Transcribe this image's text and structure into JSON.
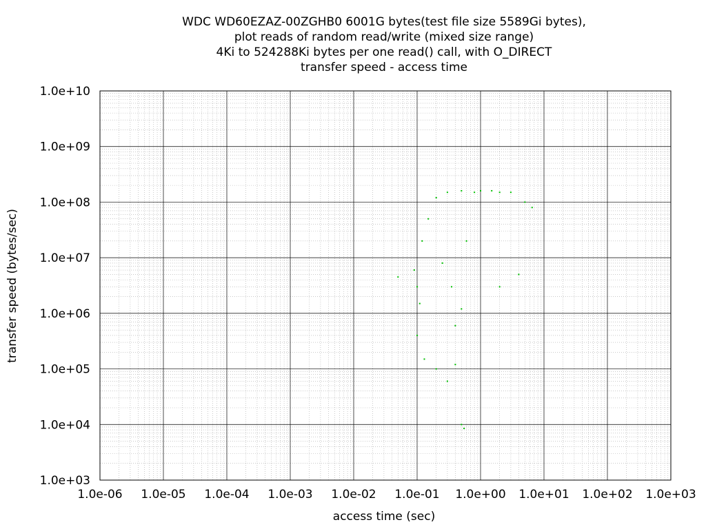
{
  "chart_data": {
    "type": "scatter",
    "title_lines": [
      "WDC WD60EZAZ-00ZGHB0 6001G bytes(test file size 5589Gi bytes),",
      "plot reads of random read/write (mixed size range)",
      "4Ki to 524288Ki bytes per one read() call, with O_DIRECT",
      "transfer speed - access time"
    ],
    "xlabel": "access time (sec)",
    "ylabel": "transfer speed (bytes/sec)",
    "xscale": "log",
    "yscale": "log",
    "xlim": [
      1e-06,
      1000
    ],
    "ylim": [
      1000,
      10000000000.0
    ],
    "x_tick_labels": [
      "1.0e-06",
      "1.0e-05",
      "1.0e-04",
      "1.0e-03",
      "1.0e-02",
      "1.0e-01",
      "1.0e+00",
      "1.0e+01",
      "1.0e+02",
      "1.0e+03"
    ],
    "y_tick_labels": [
      "1.0e+03",
      "1.0e+04",
      "1.0e+05",
      "1.0e+06",
      "1.0e+07",
      "1.0e+08",
      "1.0e+09",
      "1.0e+10"
    ],
    "grid": true,
    "series_color": "#00c000",
    "series": [
      {
        "points": [
          [
            0.05,
            4500000.0
          ],
          [
            0.09,
            6000000.0
          ],
          [
            0.1,
            3000000.0
          ],
          [
            0.11,
            1500000.0
          ],
          [
            0.1,
            400000.0
          ],
          [
            0.12,
            20000000.0
          ],
          [
            0.15,
            50000000.0
          ],
          [
            0.2,
            120000000.0
          ],
          [
            0.3,
            150000000.0
          ],
          [
            0.25,
            8000000.0
          ],
          [
            0.4,
            600000.0
          ],
          [
            0.4,
            120000.0
          ],
          [
            0.35,
            3000000.0
          ],
          [
            0.5,
            160000000.0
          ],
          [
            0.6,
            20000000.0
          ],
          [
            0.8,
            150000000.0
          ],
          [
            1.0,
            160000000.0
          ],
          [
            1.5,
            160000000.0
          ],
          [
            2.0,
            150000000.0
          ],
          [
            3.0,
            150000000.0
          ],
          [
            5.0,
            100000000.0
          ],
          [
            6.5,
            80000000.0
          ],
          [
            4.0,
            5000000.0
          ],
          [
            2.0,
            3000000.0
          ],
          [
            0.5,
            1200000.0
          ],
          [
            0.13,
            150000.0
          ],
          [
            0.3,
            60000.0
          ],
          [
            0.5,
            10000.0
          ],
          [
            0.55,
            8500.0
          ],
          [
            0.2,
            100000.0
          ]
        ]
      }
    ]
  }
}
